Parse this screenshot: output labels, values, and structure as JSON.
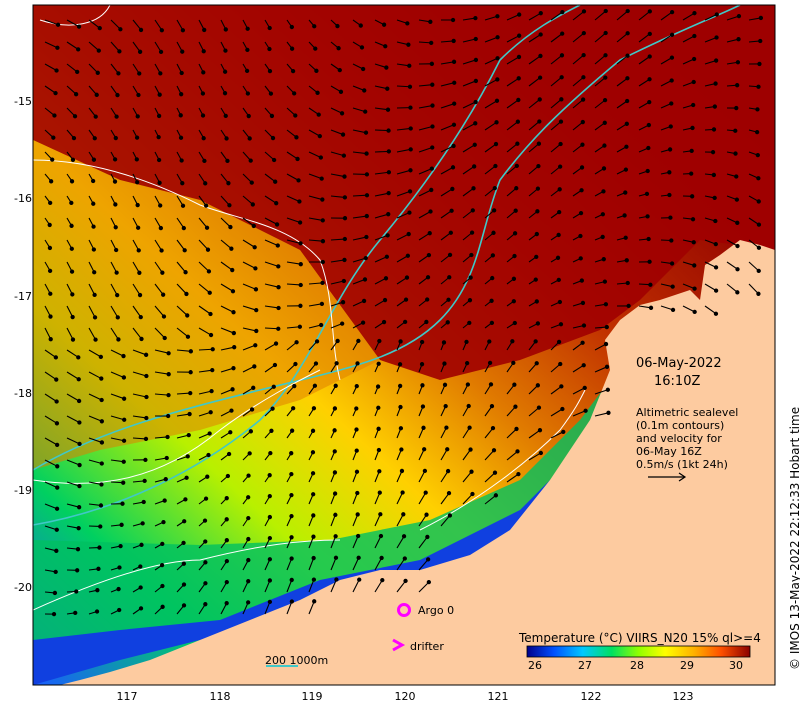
{
  "date": {
    "line1": "06-May-2022",
    "line2": "16:10Z"
  },
  "altimetry": {
    "lines": [
      "Altimetric sealevel",
      "(0.1m contours)",
      "and velocity for",
      "06-May 16Z",
      "0.5m/s (1kt 24h)"
    ]
  },
  "colorbar": {
    "title": "Temperature (°C) VIIRS_N20 15% ql>=4",
    "ticks": [
      "26",
      "27",
      "28",
      "29",
      "30"
    ],
    "colors": [
      "#00008b",
      "#0050ff",
      "#00c8ff",
      "#00e060",
      "#60ff00",
      "#ffff00",
      "#ffb000",
      "#ff6000",
      "#d02000",
      "#8b0000"
    ]
  },
  "axes": {
    "lat_labels": [
      "-15",
      "-16",
      "-17",
      "-18",
      "-19",
      "-20"
    ],
    "lon_labels": [
      "117",
      "118",
      "119",
      "120",
      "121",
      "122",
      "123"
    ]
  },
  "legend": {
    "argo": "Argo 0",
    "drifter": "drifter",
    "argo_color": "#ff00ff",
    "drifter_color": "#ff00ff"
  },
  "scale": {
    "text": "200   1000m",
    "color": "#40c8c8"
  },
  "copyright": "© IMOS 13-May-2022 22:12:33 Hobart time",
  "map": {
    "land_color": "#fdcba0",
    "bathy_color": "#40c8c8",
    "contour_color": "#ffffff",
    "arrow_color": "#000000"
  }
}
